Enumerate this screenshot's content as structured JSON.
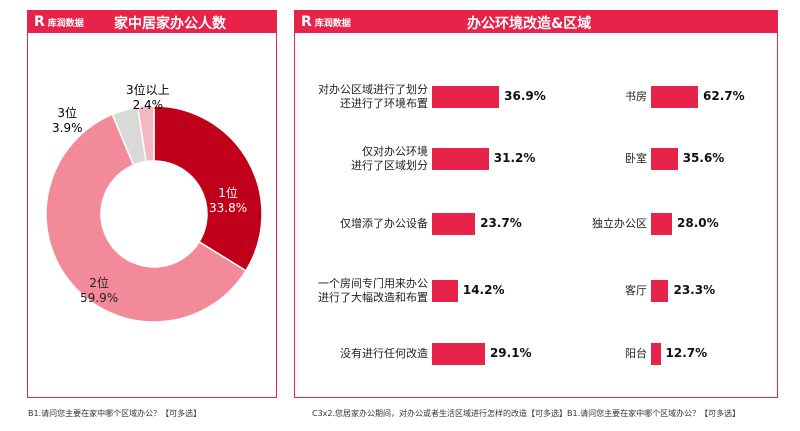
{
  "brand": "库润数据",
  "chart_data": [
    {
      "type": "pie",
      "title": "家中居家办公人数",
      "categories": [
        "1位",
        "2位",
        "3位",
        "3位以上"
      ],
      "values": [
        33.8,
        59.9,
        3.9,
        2.4
      ],
      "value_labels": [
        "33.8%",
        "59.9%",
        "3.9%",
        "2.4%"
      ],
      "colors": [
        "#c0001a",
        "#f28a9a",
        "#d9d9d9",
        "#f5b8c2"
      ],
      "note": "B1.请问您主要在家中哪个区域办公？【可多选】"
    },
    {
      "type": "bar",
      "title": "办公环境改造&区域",
      "categories": [
        "对办公区域进行了划分\n还进行了环境布置",
        "仅对办公环境\n进行了区域划分",
        "仅增添了办公设备",
        "一个房间专门用来办公\n进行了大幅改造和布置",
        "没有进行任何改造"
      ],
      "values": [
        36.9,
        31.2,
        23.7,
        14.2,
        29.1
      ],
      "value_labels": [
        "36.9%",
        "31.2%",
        "23.7%",
        "14.2%",
        "29.1%"
      ]
    },
    {
      "type": "bar",
      "categories": [
        "书房",
        "卧室",
        "独立办公区",
        "客厅",
        "阳台"
      ],
      "values": [
        62.7,
        35.6,
        28.0,
        23.3,
        12.7
      ],
      "value_labels": [
        "62.7%",
        "35.6%",
        "28.0%",
        "23.3%",
        "12.7%"
      ],
      "note": "C3x2.您居家办公期间，对办公或者生活区域进行怎样的改造【可多选】B1.请问您主要在家中哪个区域办公？【可多选】"
    }
  ]
}
